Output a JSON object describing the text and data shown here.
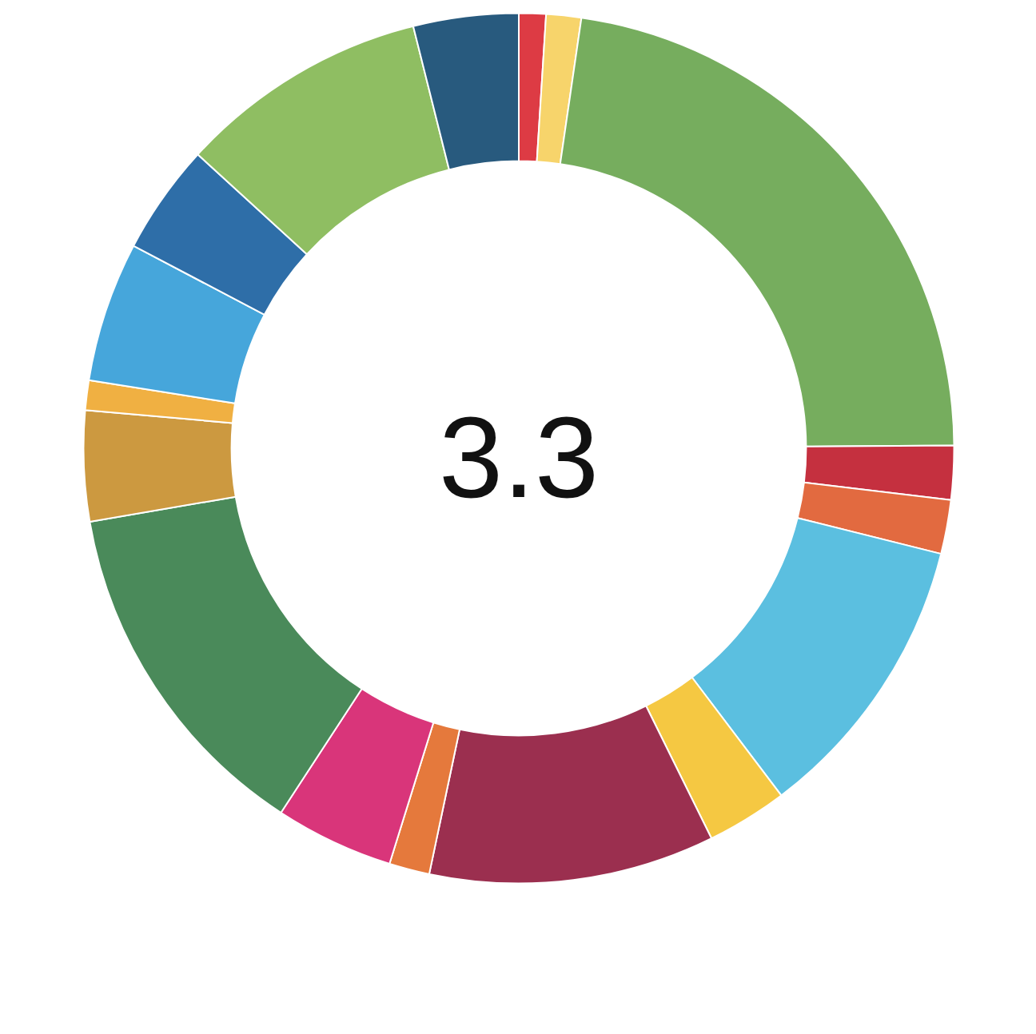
{
  "chart_data": {
    "type": "donut",
    "categories": [
      null,
      null,
      null,
      null,
      null,
      null,
      null,
      null,
      null,
      null,
      null,
      null,
      null,
      null,
      null,
      null,
      null
    ],
    "values": [
      1.0,
      1.3,
      22.6,
      2.0,
      2.0,
      10.8,
      3.0,
      10.6,
      1.5,
      4.4,
      13.1,
      4.1,
      1.1,
      5.2,
      4.1,
      9.3,
      3.9
    ],
    "colors": [
      "#dd3b44",
      "#f7d46b",
      "#76ad5e",
      "#c5303f",
      "#e26a40",
      "#5bbfe0",
      "#f5c842",
      "#9b2f4f",
      "#e5793c",
      "#d9357a",
      "#4a8a5a",
      "#cc9940",
      "#f0b042",
      "#46a6db",
      "#2e6ea8",
      "#8fbe62",
      "#285a7e"
    ],
    "annotations": [
      "3.3"
    ]
  }
}
